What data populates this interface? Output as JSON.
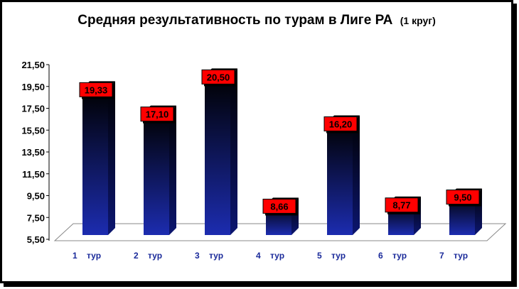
{
  "chart_data": {
    "type": "bar",
    "title": "Средняя результативность по турам в Лиге РА",
    "subtitle": "(1 круг)",
    "categories": [
      "1    тур",
      "2    тур",
      "3    тур",
      "4    тур",
      "5    тур",
      "6    тур",
      "7    тур"
    ],
    "values": [
      19.33,
      17.1,
      20.5,
      8.66,
      16.2,
      8.77,
      9.5
    ],
    "data_labels": [
      "19,33",
      "17,10",
      "20,50",
      "8,66",
      "16,20",
      "8,77",
      "9,50"
    ],
    "y_ticks": [
      "5,50",
      "7,50",
      "9,50",
      "11,50",
      "13,50",
      "15,50",
      "17,50",
      "19,50",
      "21,50"
    ],
    "ylim": [
      5.5,
      21.5
    ],
    "grid": false,
    "legend": "none",
    "colors": {
      "bar_top": "#000000",
      "bar_bottom": "#1c2cb0",
      "label_fill": "#ff0000",
      "cat_text": "#1a2a9a"
    }
  }
}
